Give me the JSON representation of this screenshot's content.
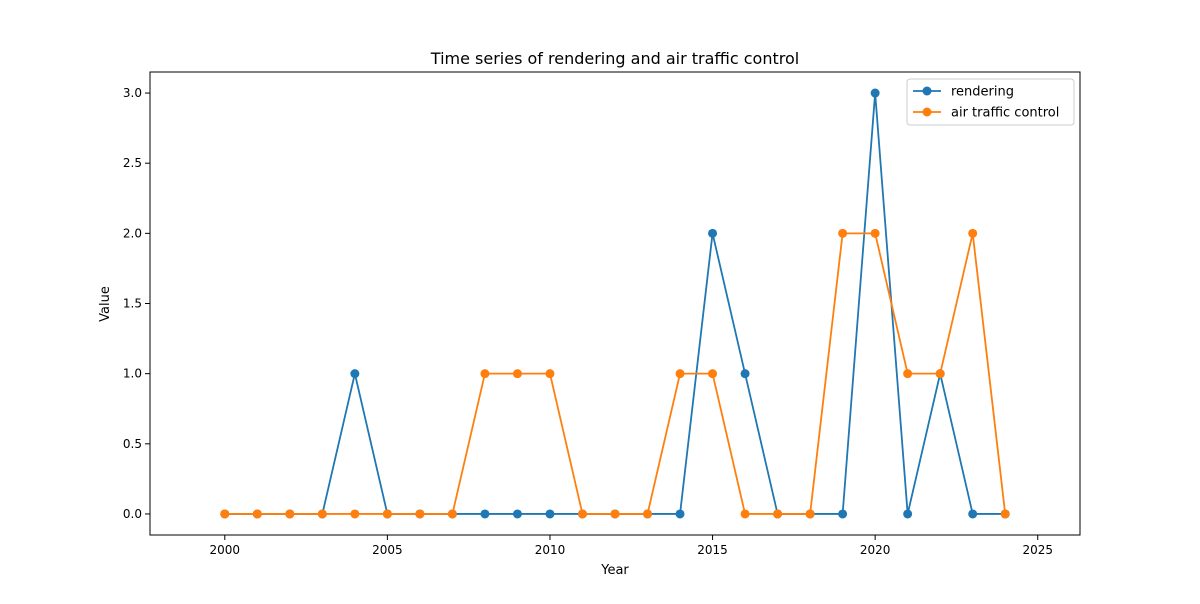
{
  "chart_data": {
    "type": "line",
    "title": "Time series of rendering and air traffic control",
    "xlabel": "Year",
    "ylabel": "Value",
    "xlim": [
      1997.7,
      2026.3
    ],
    "ylim": [
      -0.15,
      3.15
    ],
    "xticks": [
      2000,
      2005,
      2010,
      2015,
      2020,
      2025
    ],
    "yticks": [
      0.0,
      0.5,
      1.0,
      1.5,
      2.0,
      2.5,
      3.0
    ],
    "xtick_labels": [
      "2000",
      "2005",
      "2010",
      "2015",
      "2020",
      "2025"
    ],
    "ytick_labels": [
      "0.0",
      "0.5",
      "1.0",
      "1.5",
      "2.0",
      "2.5",
      "3.0"
    ],
    "grid": false,
    "legend_position": "top-right",
    "x": [
      2000,
      2001,
      2002,
      2003,
      2004,
      2005,
      2006,
      2007,
      2008,
      2009,
      2010,
      2011,
      2012,
      2013,
      2014,
      2015,
      2016,
      2017,
      2018,
      2019,
      2020,
      2021,
      2022,
      2023,
      2024
    ],
    "series": [
      {
        "name": "rendering",
        "color": "#1f77b4",
        "values": [
          0,
          0,
          0,
          0,
          1,
          0,
          0,
          0,
          0,
          0,
          0,
          0,
          0,
          0,
          0,
          2,
          1,
          0,
          0,
          0,
          3,
          0,
          1,
          0,
          0
        ]
      },
      {
        "name": "air traffic control",
        "color": "#ff7f0e",
        "values": [
          0,
          0,
          0,
          0,
          0,
          0,
          0,
          0,
          1,
          1,
          1,
          0,
          0,
          0,
          1,
          1,
          0,
          0,
          0,
          2,
          2,
          1,
          1,
          2,
          0
        ]
      }
    ]
  }
}
